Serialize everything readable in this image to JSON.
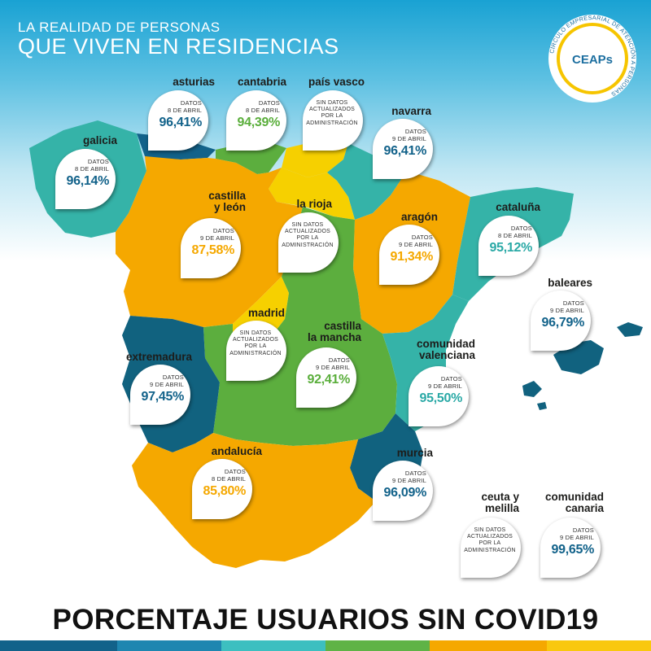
{
  "header": {
    "line1": "LA REALIDAD DE PERSONAS",
    "line2": "QUE VIVEN EN RESIDENCIAS"
  },
  "logo": {
    "brand": "CEAPs",
    "ring_text": "CÍRCULO EMPRESARIAL DE ATENCIÓN A PERSONAS"
  },
  "colors": {
    "orange": "#f5a800",
    "green": "#5cae3e",
    "teal": "#35b3a8",
    "navy": "#11627f",
    "yellow": "#f6d000"
  },
  "regions": {
    "asturias": {
      "name": "asturias",
      "date": "DATOS\n8 DE ABRIL",
      "value": "96,41%",
      "color": "#12628a"
    },
    "cantabria": {
      "name": "cantabria",
      "date": "DATOS\n8 DE ABRIL",
      "value": "94,39%",
      "color": "#5aae3b"
    },
    "pais_vasco": {
      "name": "país vasco",
      "date": "SIN DATOS\nACTUALIZADOS\nPOR LA\nADMINISTRACIÓN"
    },
    "navarra": {
      "name": "navarra",
      "date": "DATOS\n9 DE ABRIL",
      "value": "96,41%",
      "color": "#12628a"
    },
    "galicia": {
      "name": "galicia",
      "date": "DATOS\n8 DE ABRIL",
      "value": "96,14%",
      "color": "#12628a"
    },
    "castilla_leon": {
      "name": "castilla\ny león",
      "date": "DATOS\n9 DE ABRIL",
      "value": "87,58%",
      "color": "#f5a800"
    },
    "la_rioja": {
      "name": "la rioja",
      "date": "SIN DATOS\nACTUALIZADOS\nPOR LA\nADMINISTRACIÓN"
    },
    "aragon": {
      "name": "aragón",
      "date": "DATOS\n9 DE ABRIL",
      "value": "91,34%",
      "color": "#f5a800"
    },
    "cataluna": {
      "name": "cataluña",
      "date": "DATOS\n8 DE ABRIL",
      "value": "95,12%",
      "color": "#2aa9a6"
    },
    "baleares": {
      "name": "baleares",
      "date": "DATOS\n9 DE ABRIL",
      "value": "96,79%",
      "color": "#12628a"
    },
    "madrid": {
      "name": "madrid",
      "date": "SIN DATOS\nACTUALIZADOS\nPOR LA\nADMINISTRACIÓN"
    },
    "castilla_mancha": {
      "name": "castilla\nla mancha",
      "date": "DATOS\n9 DE ABRIL",
      "value": "92,41%",
      "color": "#5aae3b"
    },
    "extremadura": {
      "name": "extremadura",
      "date": "DATOS\n9 DE ABRIL",
      "value": "97,45%",
      "color": "#12628a"
    },
    "valenciana": {
      "name": "comunidad\nvalenciana",
      "date": "DATOS\n9 DE ABRIL",
      "value": "95,50%",
      "color": "#2aa9a6"
    },
    "andalucia": {
      "name": "andalucía",
      "date": "DATOS\n8 DE ABRIL",
      "value": "85,80%",
      "color": "#f5a800"
    },
    "murcia": {
      "name": "murcia",
      "date": "DATOS\n9 DE ABRIL",
      "value": "96,09%",
      "color": "#12628a"
    },
    "ceuta_melilla": {
      "name": "ceuta y\nmelilla",
      "date": "SIN DATOS\nACTUALIZADOS\nPOR LA\nADMINISTRACIÓN"
    },
    "canarias": {
      "name": "comunidad\ncanaria",
      "date": "DATOS\n9 DE ABRIL",
      "value": "99,65%",
      "color": "#12628a"
    }
  },
  "footer": {
    "title": "PORCENTAJE USUARIOS SIN COVID19"
  }
}
